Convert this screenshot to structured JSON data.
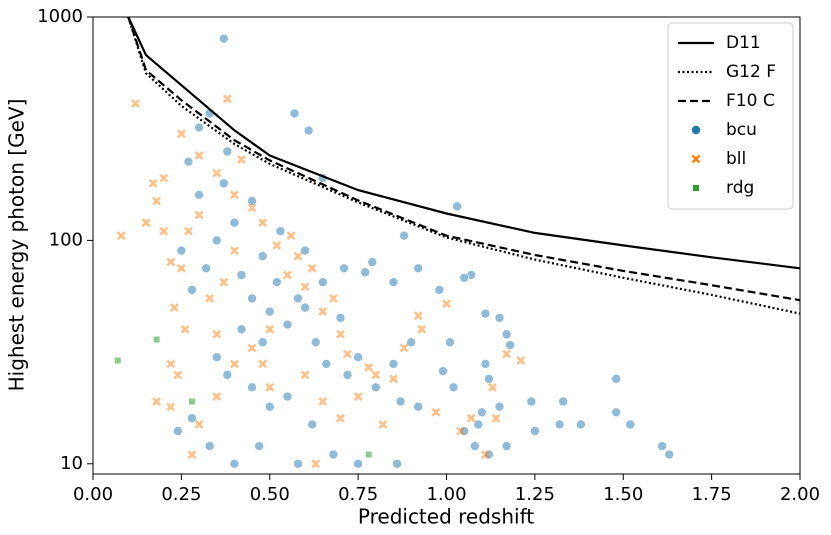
{
  "chart_data": {
    "type": "scatter",
    "xlabel": "Predicted redshift",
    "ylabel": "Highest energy photon [GeV]",
    "xlim": [
      0,
      2
    ],
    "ylim": [
      9,
      1000
    ],
    "log_y": true,
    "legend": "upper right",
    "xticks": [
      {
        "value": 0,
        "label": "0.00"
      },
      {
        "value": 0.25,
        "label": "0.25"
      },
      {
        "value": 0.5,
        "label": "0.50"
      },
      {
        "value": 0.75,
        "label": "0.75"
      },
      {
        "value": 1,
        "label": "1.00"
      },
      {
        "value": 1.25,
        "label": "1.25"
      },
      {
        "value": 1.5,
        "label": "1.50"
      },
      {
        "value": 1.75,
        "label": "1.75"
      },
      {
        "value": 2,
        "label": "2.00"
      }
    ],
    "yticks": [
      10,
      100,
      1000
    ],
    "series": [
      {
        "name": "D11",
        "kind": "line",
        "style": "solid",
        "color": "#000000",
        "x": [
          0.1,
          0.15,
          0.25,
          0.4,
          0.5,
          0.75,
          1.0,
          1.25,
          1.5,
          1.75,
          2.0
        ],
        "values": [
          1000,
          675,
          495,
          311,
          240,
          168,
          132,
          108,
          95,
          84,
          75
        ]
      },
      {
        "name": "G12 F",
        "kind": "line",
        "style": "dotted",
        "color": "#000000",
        "x": [
          0.1,
          0.15,
          0.25,
          0.4,
          0.5,
          0.75,
          1.0,
          1.25,
          1.5,
          1.75,
          2.0
        ],
        "values": [
          1000,
          560,
          400,
          270,
          220,
          148,
          103,
          82,
          68,
          57,
          47
        ]
      },
      {
        "name": "F10 C",
        "kind": "line",
        "style": "dashed",
        "color": "#000000",
        "x": [
          0.1,
          0.15,
          0.25,
          0.4,
          0.5,
          0.75,
          1.0,
          1.25,
          1.5,
          1.75,
          2.0
        ],
        "values": [
          1000,
          578,
          424,
          281,
          228,
          151,
          105,
          86,
          73,
          63,
          54
        ]
      },
      {
        "name": "bcu",
        "kind": "points",
        "marker": "circle",
        "color": "#1f77b4",
        "x": [
          0.37,
          0.57,
          0.61,
          0.33,
          0.3,
          0.65,
          1.03,
          0.38,
          0.27,
          1.07,
          1.05,
          0.98,
          0.92,
          0.85,
          0.79,
          0.77,
          0.71,
          0.88,
          1.01,
          1.11,
          1.15,
          1.17,
          1.18,
          1.11,
          1.12,
          1.15,
          1.1,
          1.09,
          1.02,
          0.99,
          1.05,
          1.08,
          1.12,
          1.24,
          1.25,
          1.33,
          1.32,
          1.38,
          1.48,
          1.48,
          1.52,
          1.61,
          1.63,
          1.17,
          0.92,
          0.87,
          0.85,
          0.8,
          0.9,
          0.86,
          0.75,
          0.68,
          0.58,
          0.4,
          0.47,
          0.33,
          0.24,
          0.28,
          0.35,
          0.42,
          0.45,
          0.5,
          0.52,
          0.55,
          0.48,
          0.4,
          0.45,
          0.37,
          0.3,
          0.32,
          0.28,
          0.25,
          0.6,
          0.63,
          0.66,
          0.7,
          0.72,
          0.75,
          0.55,
          0.5,
          0.45,
          0.38,
          0.62,
          0.58,
          0.42,
          0.35,
          0.53,
          0.6,
          0.65,
          0.48
        ],
        "values": [
          800,
          370,
          310,
          370,
          320,
          190,
          142,
          250,
          225,
          70,
          68,
          60,
          75,
          65,
          80,
          72,
          75,
          105,
          35,
          47,
          45,
          38,
          34,
          28,
          24,
          18,
          17,
          15,
          22,
          26,
          14,
          12,
          11,
          19,
          14,
          19,
          15,
          15,
          24,
          17,
          15,
          12,
          11,
          12,
          18,
          19,
          28,
          22,
          35,
          10,
          10,
          11,
          10,
          10,
          12,
          12,
          14,
          16,
          30,
          40,
          55,
          48,
          65,
          42,
          85,
          120,
          150,
          180,
          160,
          75,
          60,
          90,
          50,
          35,
          28,
          45,
          25,
          30,
          20,
          18,
          22,
          25,
          15,
          55,
          70,
          100,
          110,
          90,
          65,
          35
        ]
      },
      {
        "name": "bll",
        "kind": "points",
        "marker": "x",
        "color": "#ff7f0e",
        "x": [
          0.12,
          0.38,
          0.08,
          0.17,
          0.18,
          0.15,
          0.2,
          0.22,
          0.25,
          0.23,
          0.26,
          0.22,
          0.24,
          0.22,
          0.28,
          0.18,
          0.3,
          0.35,
          0.4,
          0.45,
          0.5,
          0.55,
          0.58,
          0.6,
          0.65,
          0.7,
          0.72,
          0.78,
          0.8,
          0.85,
          0.88,
          0.93,
          1.0,
          0.92,
          1.04,
          1.13,
          1.14,
          1.07,
          1.21,
          1.17,
          0.97,
          0.75,
          0.65,
          0.5,
          0.45,
          0.4,
          0.35,
          0.3,
          0.25,
          0.2,
          0.42,
          0.48,
          0.52,
          0.56,
          0.62,
          0.68,
          0.33,
          0.37,
          0.4,
          0.3,
          0.27,
          0.35,
          0.48,
          0.6,
          0.7,
          0.82,
          1.11,
          0.63
        ],
        "values": [
          410,
          430,
          105,
          180,
          150,
          120,
          110,
          80,
          75,
          50,
          40,
          28,
          25,
          18,
          11,
          19,
          15,
          20,
          28,
          33,
          40,
          70,
          85,
          62,
          48,
          38,
          31,
          27,
          25,
          24,
          33,
          40,
          52,
          46,
          14,
          22,
          16,
          16,
          29,
          31,
          17,
          20,
          19,
          22,
          140,
          160,
          200,
          240,
          300,
          190,
          230,
          120,
          95,
          105,
          75,
          55,
          55,
          65,
          90,
          130,
          110,
          38,
          28,
          25,
          16,
          15,
          11,
          10
        ]
      },
      {
        "name": "rdg",
        "kind": "points",
        "marker": "square",
        "color": "#2ca02c",
        "x": [
          0.07,
          0.18,
          0.28,
          0.78
        ],
        "values": [
          29,
          36,
          19,
          11
        ]
      }
    ]
  }
}
